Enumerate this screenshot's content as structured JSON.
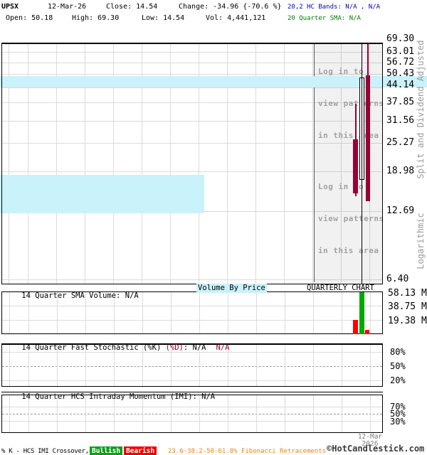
{
  "header": {
    "symbol": "UPSX",
    "date": "12-Mar-26",
    "close": "Close: 14.54",
    "change": "Change: -34.96 {-70.6 %}",
    "hc_bands": "20,2 HC Bands: N/A , N/A",
    "open": "Open: 50.18",
    "high": "High: 69.30",
    "low": "Low: 14.54",
    "volume": "Vol: 4,441,121",
    "sma": "20 Quarter SMA: N/A"
  },
  "main_chart": {
    "price_labels": [
      "69.30",
      "63.01",
      "56.72",
      "50.43",
      "44.14",
      "37.85",
      "31.56",
      "25.27",
      "18.98",
      "12.69",
      "6.40"
    ],
    "pattern_notice": [
      "Log in to",
      "view patterns",
      "in this area"
    ],
    "axis_note_top": "Split and Dividend Adjusted",
    "axis_note_bottom": "Logarithmic"
  },
  "volume_panel": {
    "title": "14 Quarter SMA Volume: N/A",
    "volume_by_price_label": "Volume By Price",
    "chart_type_label": "QUARTERLY CHART",
    "axis_labels": [
      "58.13 M",
      "38.75 M",
      "19.38 M"
    ]
  },
  "stochastic_panel": {
    "title_main": "14 Quarter Fast Stochastic (%K) ",
    "title_d": "(%D)",
    "title_value": ": N/A",
    "title_d_value": "N/A",
    "axis_labels": [
      "80%",
      "50%",
      "20%"
    ]
  },
  "imi_panel": {
    "title": "14 Quarter HCS Intraday Momentum (IMI): N/A",
    "axis_labels": [
      "70%",
      "50%",
      "30%"
    ]
  },
  "footer": {
    "date_line1": "12-Mar",
    "date_line2": "2026",
    "crossover_label": "% K - HCS IMI Crossover,",
    "bullish_label": "Bullish",
    "bearish_label": "Bearish",
    "fibonacci_label": "23.6-38.2-50-61.8% Fibonacci Retracements",
    "copyright": "©HotCandlestick.com"
  },
  "colors": {
    "bearish_candle": "#990033",
    "bullish_volume_bar": "#00A800",
    "bearish_volume_bar": "#FF0000",
    "volume_by_price_band": "#C9F2FA",
    "hc_bands_text": "#0000CC",
    "sma_text": "#008000",
    "fibonacci_text": "#EF8318",
    "bullish_badge": "#0BA015",
    "bearish_badge": "#F00000"
  },
  "chart_data": {
    "type": "candlestick",
    "symbol": "UPSX",
    "period": "quarterly",
    "price_scale": "logarithmic",
    "price_axis_ticks": [
      69.3,
      63.01,
      56.72,
      50.43,
      44.14,
      37.85,
      31.56,
      25.27,
      18.98,
      12.69,
      6.4
    ],
    "candles": [
      {
        "open": 26.3,
        "high": 37.4,
        "low": 14.8,
        "close": 15.2,
        "direction": "bearish",
        "volume_millions_est": 20
      },
      {
        "open": 17.4,
        "high": 48.9,
        "low": 17.4,
        "close": 48.9,
        "direction": "bullish",
        "volume_millions_est": 61
      },
      {
        "date": "12-Mar-26",
        "open": 50.18,
        "high": 69.3,
        "low": 14.54,
        "close": 14.54,
        "direction": "bearish",
        "volume": 4441121
      }
    ],
    "volume_axis_ticks": [
      "58.13 M",
      "38.75 M",
      "19.38 M"
    ],
    "volume_by_price_bands": [
      {
        "approx_price_range": [
          44.1,
          50.4
        ],
        "relative_width": 1.0
      },
      {
        "approx_price_range": [
          11.6,
          17.5
        ],
        "relative_width": 0.53
      }
    ],
    "indicators": [
      {
        "name": "20,2 HC Bands",
        "value": "N/A , N/A"
      },
      {
        "name": "20 Quarter SMA",
        "value": "N/A"
      },
      {
        "name": "14 Quarter SMA Volume",
        "value": "N/A"
      },
      {
        "name": "14 Quarter Fast Stochastic %K %D",
        "value": "N/A N/A",
        "axis_pct": [
          80,
          50,
          20
        ]
      },
      {
        "name": "14 Quarter HCS Intraday Momentum (IMI)",
        "value": "N/A",
        "axis_pct": [
          70,
          50,
          30
        ]
      }
    ]
  }
}
